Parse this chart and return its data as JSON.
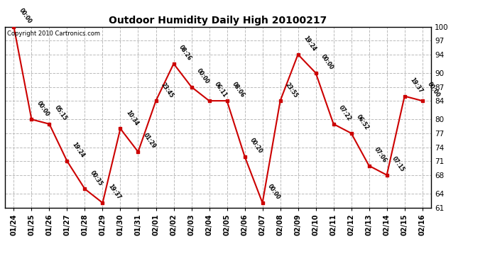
{
  "title": "Outdoor Humidity Daily High 20100217",
  "copyright": "Copyright 2010 Cartronics.com",
  "background_color": "#ffffff",
  "plot_bg_color": "#ffffff",
  "grid_color": "#bbbbbb",
  "line_color": "#cc0000",
  "marker_color": "#cc0000",
  "text_color": "#000000",
  "ylim": [
    61,
    100
  ],
  "yticks": [
    61,
    64,
    68,
    71,
    74,
    77,
    80,
    84,
    87,
    90,
    94,
    97,
    100
  ],
  "dates": [
    "01/24",
    "01/25",
    "01/26",
    "01/27",
    "01/28",
    "01/29",
    "01/30",
    "01/31",
    "02/01",
    "02/02",
    "02/03",
    "02/04",
    "02/05",
    "02/06",
    "02/07",
    "02/08",
    "02/09",
    "02/10",
    "02/11",
    "02/12",
    "02/13",
    "02/14",
    "02/15",
    "02/16"
  ],
  "values": [
    100,
    80,
    79,
    71,
    65,
    62,
    78,
    73,
    84,
    92,
    87,
    84,
    84,
    72,
    62,
    84,
    94,
    90,
    79,
    77,
    70,
    68,
    85,
    84
  ],
  "times": [
    "00:00",
    "00:00",
    "05:15",
    "19:24",
    "00:35",
    "19:37",
    "10:34",
    "01:29",
    "23:45",
    "08:26",
    "00:00",
    "06:11",
    "08:06",
    "00:20",
    "00:00",
    "23:55",
    "19:24",
    "00:00",
    "07:22",
    "06:52",
    "07:06",
    "07:15",
    "19:37",
    "00:00"
  ]
}
